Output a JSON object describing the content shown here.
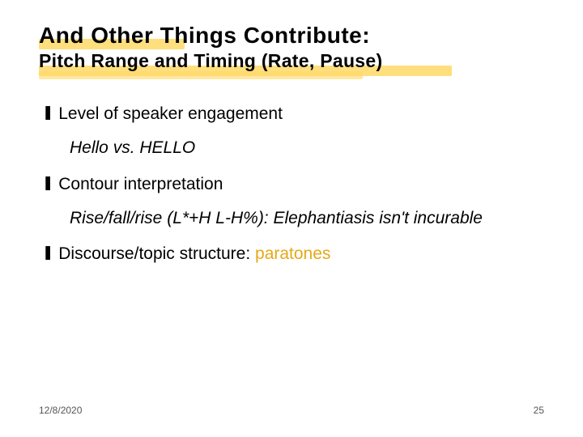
{
  "title": {
    "line1": "And Other Things Contribute:",
    "line2": "Pitch Range and Timing (Rate, Pause)",
    "highlight_color": "#ffd966",
    "font_family": "Arial",
    "font_weight": 900,
    "line1_fontsize": 28,
    "line2_fontsize": 23
  },
  "bullets": [
    {
      "icon": "❚",
      "text": "Level of speaker engagement",
      "sub_italic": "Hello vs. HELLO"
    },
    {
      "icon": "❚",
      "text": " Contour interpretation",
      "sub_italic": "Rise/fall/rise (L*+H L-H%): Elephantiasis isn't incurable"
    },
    {
      "icon": "❚",
      "text_prefix": " Discourse/topic structure: ",
      "highlight_word": "paratones"
    }
  ],
  "colors": {
    "text": "#000000",
    "highlight_word": "#e6a817",
    "brush": "#ffd966",
    "background": "#ffffff",
    "footer": "#555555"
  },
  "typography": {
    "body_fontsize": 21,
    "body_font": "Verdana",
    "footer_fontsize": 12
  },
  "footer": {
    "date": "12/8/2020",
    "page": "25"
  }
}
